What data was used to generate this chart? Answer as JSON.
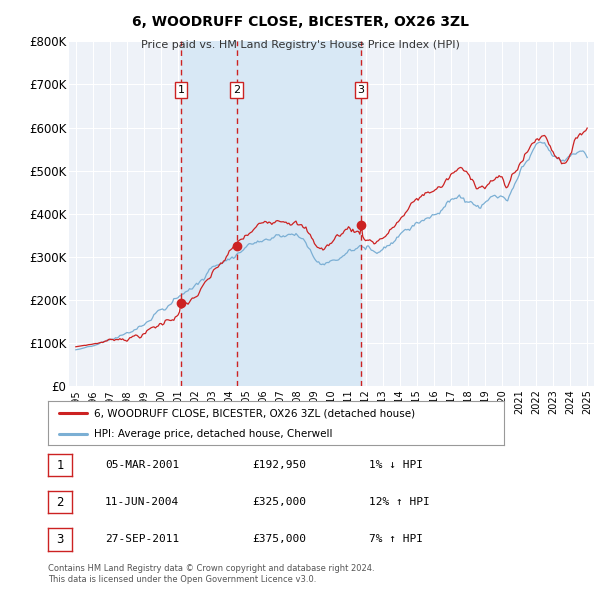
{
  "title": "6, WOODRUFF CLOSE, BICESTER, OX26 3ZL",
  "subtitle": "Price paid vs. HM Land Registry's House Price Index (HPI)",
  "ylim": [
    0,
    800000
  ],
  "yticks": [
    0,
    100000,
    200000,
    300000,
    400000,
    500000,
    600000,
    700000,
    800000
  ],
  "ytick_labels": [
    "£0",
    "£100K",
    "£200K",
    "£300K",
    "£400K",
    "£500K",
    "£600K",
    "£700K",
    "£800K"
  ],
  "background_color": "#ffffff",
  "plot_bg_color": "#eef2f8",
  "grid_color": "#ffffff",
  "hpi_color": "#7bafd4",
  "price_color": "#cc2222",
  "vline_color": "#cc2222",
  "sale_marker_color": "#cc2222",
  "sale_label_border": "#cc2222",
  "shade_color": "#d8e8f5",
  "transactions": [
    {
      "num": 1,
      "date_dec": 2001.17,
      "price": 192950
    },
    {
      "num": 2,
      "date_dec": 2004.44,
      "price": 325000
    },
    {
      "num": 3,
      "date_dec": 2011.74,
      "price": 375000
    }
  ],
  "table_rows": [
    {
      "num": 1,
      "date": "05-MAR-2001",
      "price": "£192,950",
      "hpi_diff": "1% ↓ HPI"
    },
    {
      "num": 2,
      "date": "11-JUN-2004",
      "price": "£325,000",
      "hpi_diff": "12% ↑ HPI"
    },
    {
      "num": 3,
      "date": "27-SEP-2011",
      "price": "£375,000",
      "hpi_diff": "7% ↑ HPI"
    }
  ],
  "footnote1": "Contains HM Land Registry data © Crown copyright and database right 2024.",
  "footnote2": "This data is licensed under the Open Government Licence v3.0.",
  "legend_line1": "6, WOODRUFF CLOSE, BICESTER, OX26 3ZL (detached house)",
  "legend_line2": "HPI: Average price, detached house, Cherwell"
}
